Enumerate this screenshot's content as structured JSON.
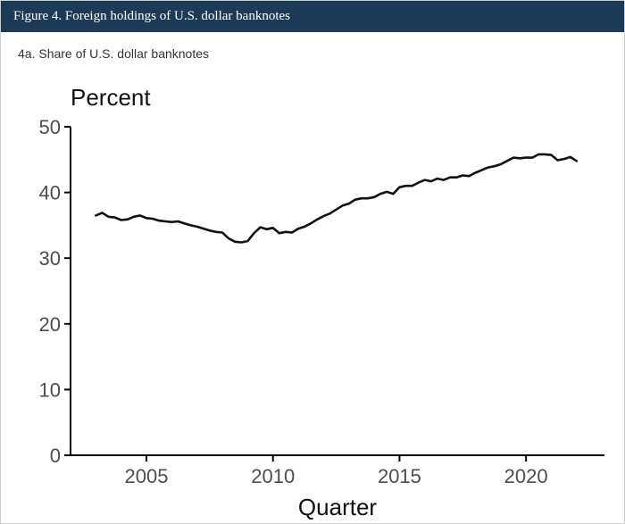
{
  "header": {
    "title": "Figure 4. Foreign holdings of U.S. dollar banknotes"
  },
  "panel": {
    "subtitle": "4a. Share of U.S. dollar banknotes"
  },
  "colors": {
    "header_bg": "#1d3a57",
    "line": "#111111",
    "axis": "#000000"
  },
  "chart_data": {
    "type": "line",
    "title": "4a. Share of U.S. dollar banknotes",
    "ylabel": "Percent",
    "xlabel": "Quarter",
    "xlim": [
      2002.0,
      2023.1
    ],
    "ylim": [
      0,
      50
    ],
    "xticks": [
      2005,
      2010,
      2015,
      2020
    ],
    "yticks": [
      0,
      10,
      20,
      30,
      40,
      50
    ],
    "grid": false,
    "series": [
      {
        "points": [
          [
            2003.0,
            36.5
          ],
          [
            2003.25,
            36.9
          ],
          [
            2003.5,
            36.3
          ],
          [
            2003.75,
            36.2
          ],
          [
            2004.0,
            35.8
          ],
          [
            2004.25,
            35.9
          ],
          [
            2004.5,
            36.3
          ],
          [
            2004.75,
            36.5
          ],
          [
            2005.0,
            36.1
          ],
          [
            2005.25,
            36.0
          ],
          [
            2005.5,
            35.7
          ],
          [
            2005.75,
            35.6
          ],
          [
            2006.0,
            35.5
          ],
          [
            2006.25,
            35.6
          ],
          [
            2006.5,
            35.3
          ],
          [
            2006.75,
            35.0
          ],
          [
            2007.0,
            34.8
          ],
          [
            2007.25,
            34.5
          ],
          [
            2007.5,
            34.2
          ],
          [
            2007.75,
            34.0
          ],
          [
            2008.0,
            33.9
          ],
          [
            2008.25,
            33.0
          ],
          [
            2008.5,
            32.5
          ],
          [
            2008.75,
            32.4
          ],
          [
            2009.0,
            32.6
          ],
          [
            2009.25,
            33.8
          ],
          [
            2009.5,
            34.7
          ],
          [
            2009.75,
            34.4
          ],
          [
            2010.0,
            34.6
          ],
          [
            2010.25,
            33.8
          ],
          [
            2010.5,
            34.0
          ],
          [
            2010.75,
            33.9
          ],
          [
            2011.0,
            34.5
          ],
          [
            2011.25,
            34.8
          ],
          [
            2011.5,
            35.3
          ],
          [
            2011.75,
            35.9
          ],
          [
            2012.0,
            36.4
          ],
          [
            2012.25,
            36.8
          ],
          [
            2012.5,
            37.4
          ],
          [
            2012.75,
            38.0
          ],
          [
            2013.0,
            38.3
          ],
          [
            2013.25,
            38.9
          ],
          [
            2013.5,
            39.1
          ],
          [
            2013.75,
            39.1
          ],
          [
            2014.0,
            39.3
          ],
          [
            2014.25,
            39.8
          ],
          [
            2014.5,
            40.1
          ],
          [
            2014.75,
            39.8
          ],
          [
            2015.0,
            40.8
          ],
          [
            2015.25,
            41.0
          ],
          [
            2015.5,
            41.0
          ],
          [
            2015.75,
            41.5
          ],
          [
            2016.0,
            41.9
          ],
          [
            2016.25,
            41.7
          ],
          [
            2016.5,
            42.1
          ],
          [
            2016.75,
            41.9
          ],
          [
            2017.0,
            42.3
          ],
          [
            2017.25,
            42.3
          ],
          [
            2017.5,
            42.6
          ],
          [
            2017.75,
            42.5
          ],
          [
            2018.0,
            43.0
          ],
          [
            2018.25,
            43.4
          ],
          [
            2018.5,
            43.8
          ],
          [
            2018.75,
            44.0
          ],
          [
            2019.0,
            44.3
          ],
          [
            2019.25,
            44.8
          ],
          [
            2019.5,
            45.3
          ],
          [
            2019.75,
            45.2
          ],
          [
            2020.0,
            45.3
          ],
          [
            2020.25,
            45.3
          ],
          [
            2020.5,
            45.8
          ],
          [
            2020.75,
            45.8
          ],
          [
            2021.0,
            45.7
          ],
          [
            2021.25,
            44.9
          ],
          [
            2021.5,
            45.1
          ],
          [
            2021.75,
            45.4
          ],
          [
            2022.0,
            44.8
          ]
        ]
      }
    ]
  }
}
